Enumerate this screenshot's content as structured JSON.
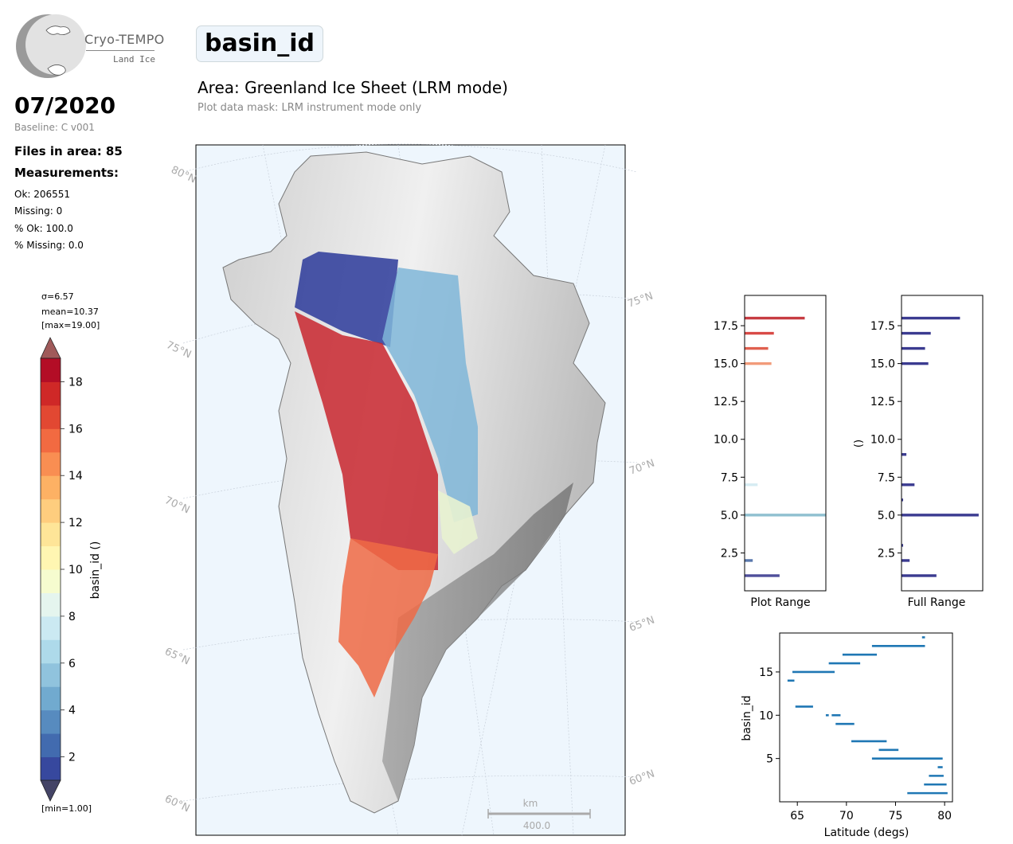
{
  "logo": {
    "name": "Cryo-TEMPO",
    "subtitle": "Land Ice"
  },
  "header": {
    "date": "07/2020",
    "baseline": "Baseline: C v001",
    "files": "Files in area: 85",
    "measurements_label": "Measurements:",
    "ok": "Ok: 206551",
    "missing": "Missing: 0",
    "pct_ok": "% Ok: 100.0",
    "pct_missing": "% Missing: 0.0"
  },
  "title": "basin_id",
  "area": "Area: Greenland Ice Sheet (LRM mode)",
  "mask": "Plot data mask: LRM instrument mode only",
  "colorbar": {
    "label": "basin_id ()",
    "sigma": "σ=6.57",
    "mean": "mean=10.37",
    "max": "[max=19.00]",
    "min": "[min=1.00]",
    "vmin": 1,
    "vmax": 19,
    "ticks": [
      "2",
      "4",
      "6",
      "8",
      "10",
      "12",
      "14",
      "16",
      "18"
    ],
    "colors": [
      "#313695",
      "#4575b4",
      "#74add1",
      "#abd9e9",
      "#e0f3f8",
      "#ffffbf",
      "#fee090",
      "#fdae61",
      "#f46d43",
      "#d73027",
      "#a50026"
    ]
  },
  "map": {
    "lat_labels": [
      "80°N",
      "75°N",
      "70°N",
      "65°N",
      "60°N"
    ],
    "lat_labels_right": [
      "75°N",
      "70°N",
      "65°N",
      "60°N"
    ],
    "scalebar_unit": "km",
    "scalebar_value": "400.0"
  },
  "chart_data": [
    {
      "type": "bar",
      "orientation": "horizontal",
      "name": "Plot Range",
      "xlabel": "Plot Range",
      "ylabel": "",
      "yticks": [
        "2.5",
        "5.0",
        "7.5",
        "10.0",
        "12.5",
        "15.0",
        "17.5"
      ],
      "ylim": [
        0,
        19.5
      ],
      "categories": [
        1,
        2,
        5,
        7,
        15,
        16,
        17,
        18
      ],
      "values": [
        0.43,
        0.1,
        1.0,
        0.16,
        0.33,
        0.29,
        0.36,
        0.74
      ],
      "colors": [
        "#4f4f9a",
        "#5a78ad",
        "#8fc0d0",
        "#d6ecf3",
        "#f29b7a",
        "#e0604f",
        "#d94b47",
        "#c73c42"
      ]
    },
    {
      "type": "bar",
      "orientation": "horizontal",
      "name": "Full Range",
      "xlabel": "Full Range",
      "ylabel": "()",
      "yticks": [
        "2.5",
        "5.0",
        "7.5",
        "10.0",
        "12.5",
        "15.0",
        "17.5"
      ],
      "ylim": [
        0,
        19.5
      ],
      "categories": [
        1,
        2,
        3,
        5,
        6,
        7,
        9,
        15,
        16,
        17,
        18
      ],
      "values": [
        0.43,
        0.1,
        0.02,
        0.95,
        0.02,
        0.16,
        0.06,
        0.33,
        0.29,
        0.36,
        0.72
      ],
      "color": "#3b3b90"
    },
    {
      "type": "scatter",
      "xlabel": "Latitude (degs)",
      "ylabel": "basin_id",
      "xticks": [
        "65",
        "70",
        "75",
        "80"
      ],
      "yticks": [
        "5",
        "10",
        "15"
      ],
      "xlim": [
        63.2,
        80.8
      ],
      "ylim": [
        0,
        19.5
      ],
      "color": "#1f77b4",
      "segments": [
        {
          "y": 1,
          "x0": 76.2,
          "x1": 80.3
        },
        {
          "y": 2,
          "x0": 77.9,
          "x1": 80.2
        },
        {
          "y": 3,
          "x0": 78.4,
          "x1": 79.9
        },
        {
          "y": 4,
          "x0": 79.3,
          "x1": 79.8
        },
        {
          "y": 5,
          "x0": 72.6,
          "x1": 79.8
        },
        {
          "y": 6,
          "x0": 73.3,
          "x1": 75.3
        },
        {
          "y": 7,
          "x0": 70.5,
          "x1": 74.1
        },
        {
          "y": 9,
          "x0": 68.9,
          "x1": 70.8
        },
        {
          "y": 10,
          "x0": 67.9,
          "x1": 68.2
        },
        {
          "y": 10,
          "x0": 68.5,
          "x1": 69.4
        },
        {
          "y": 11,
          "x0": 64.8,
          "x1": 66.6
        },
        {
          "y": 14,
          "x0": 64.0,
          "x1": 64.7
        },
        {
          "y": 15,
          "x0": 64.5,
          "x1": 68.8
        },
        {
          "y": 16,
          "x0": 68.2,
          "x1": 71.4
        },
        {
          "y": 17,
          "x0": 69.6,
          "x1": 73.1
        },
        {
          "y": 18,
          "x0": 72.6,
          "x1": 78.0
        },
        {
          "y": 19,
          "x0": 77.7,
          "x1": 78.0
        }
      ]
    }
  ]
}
